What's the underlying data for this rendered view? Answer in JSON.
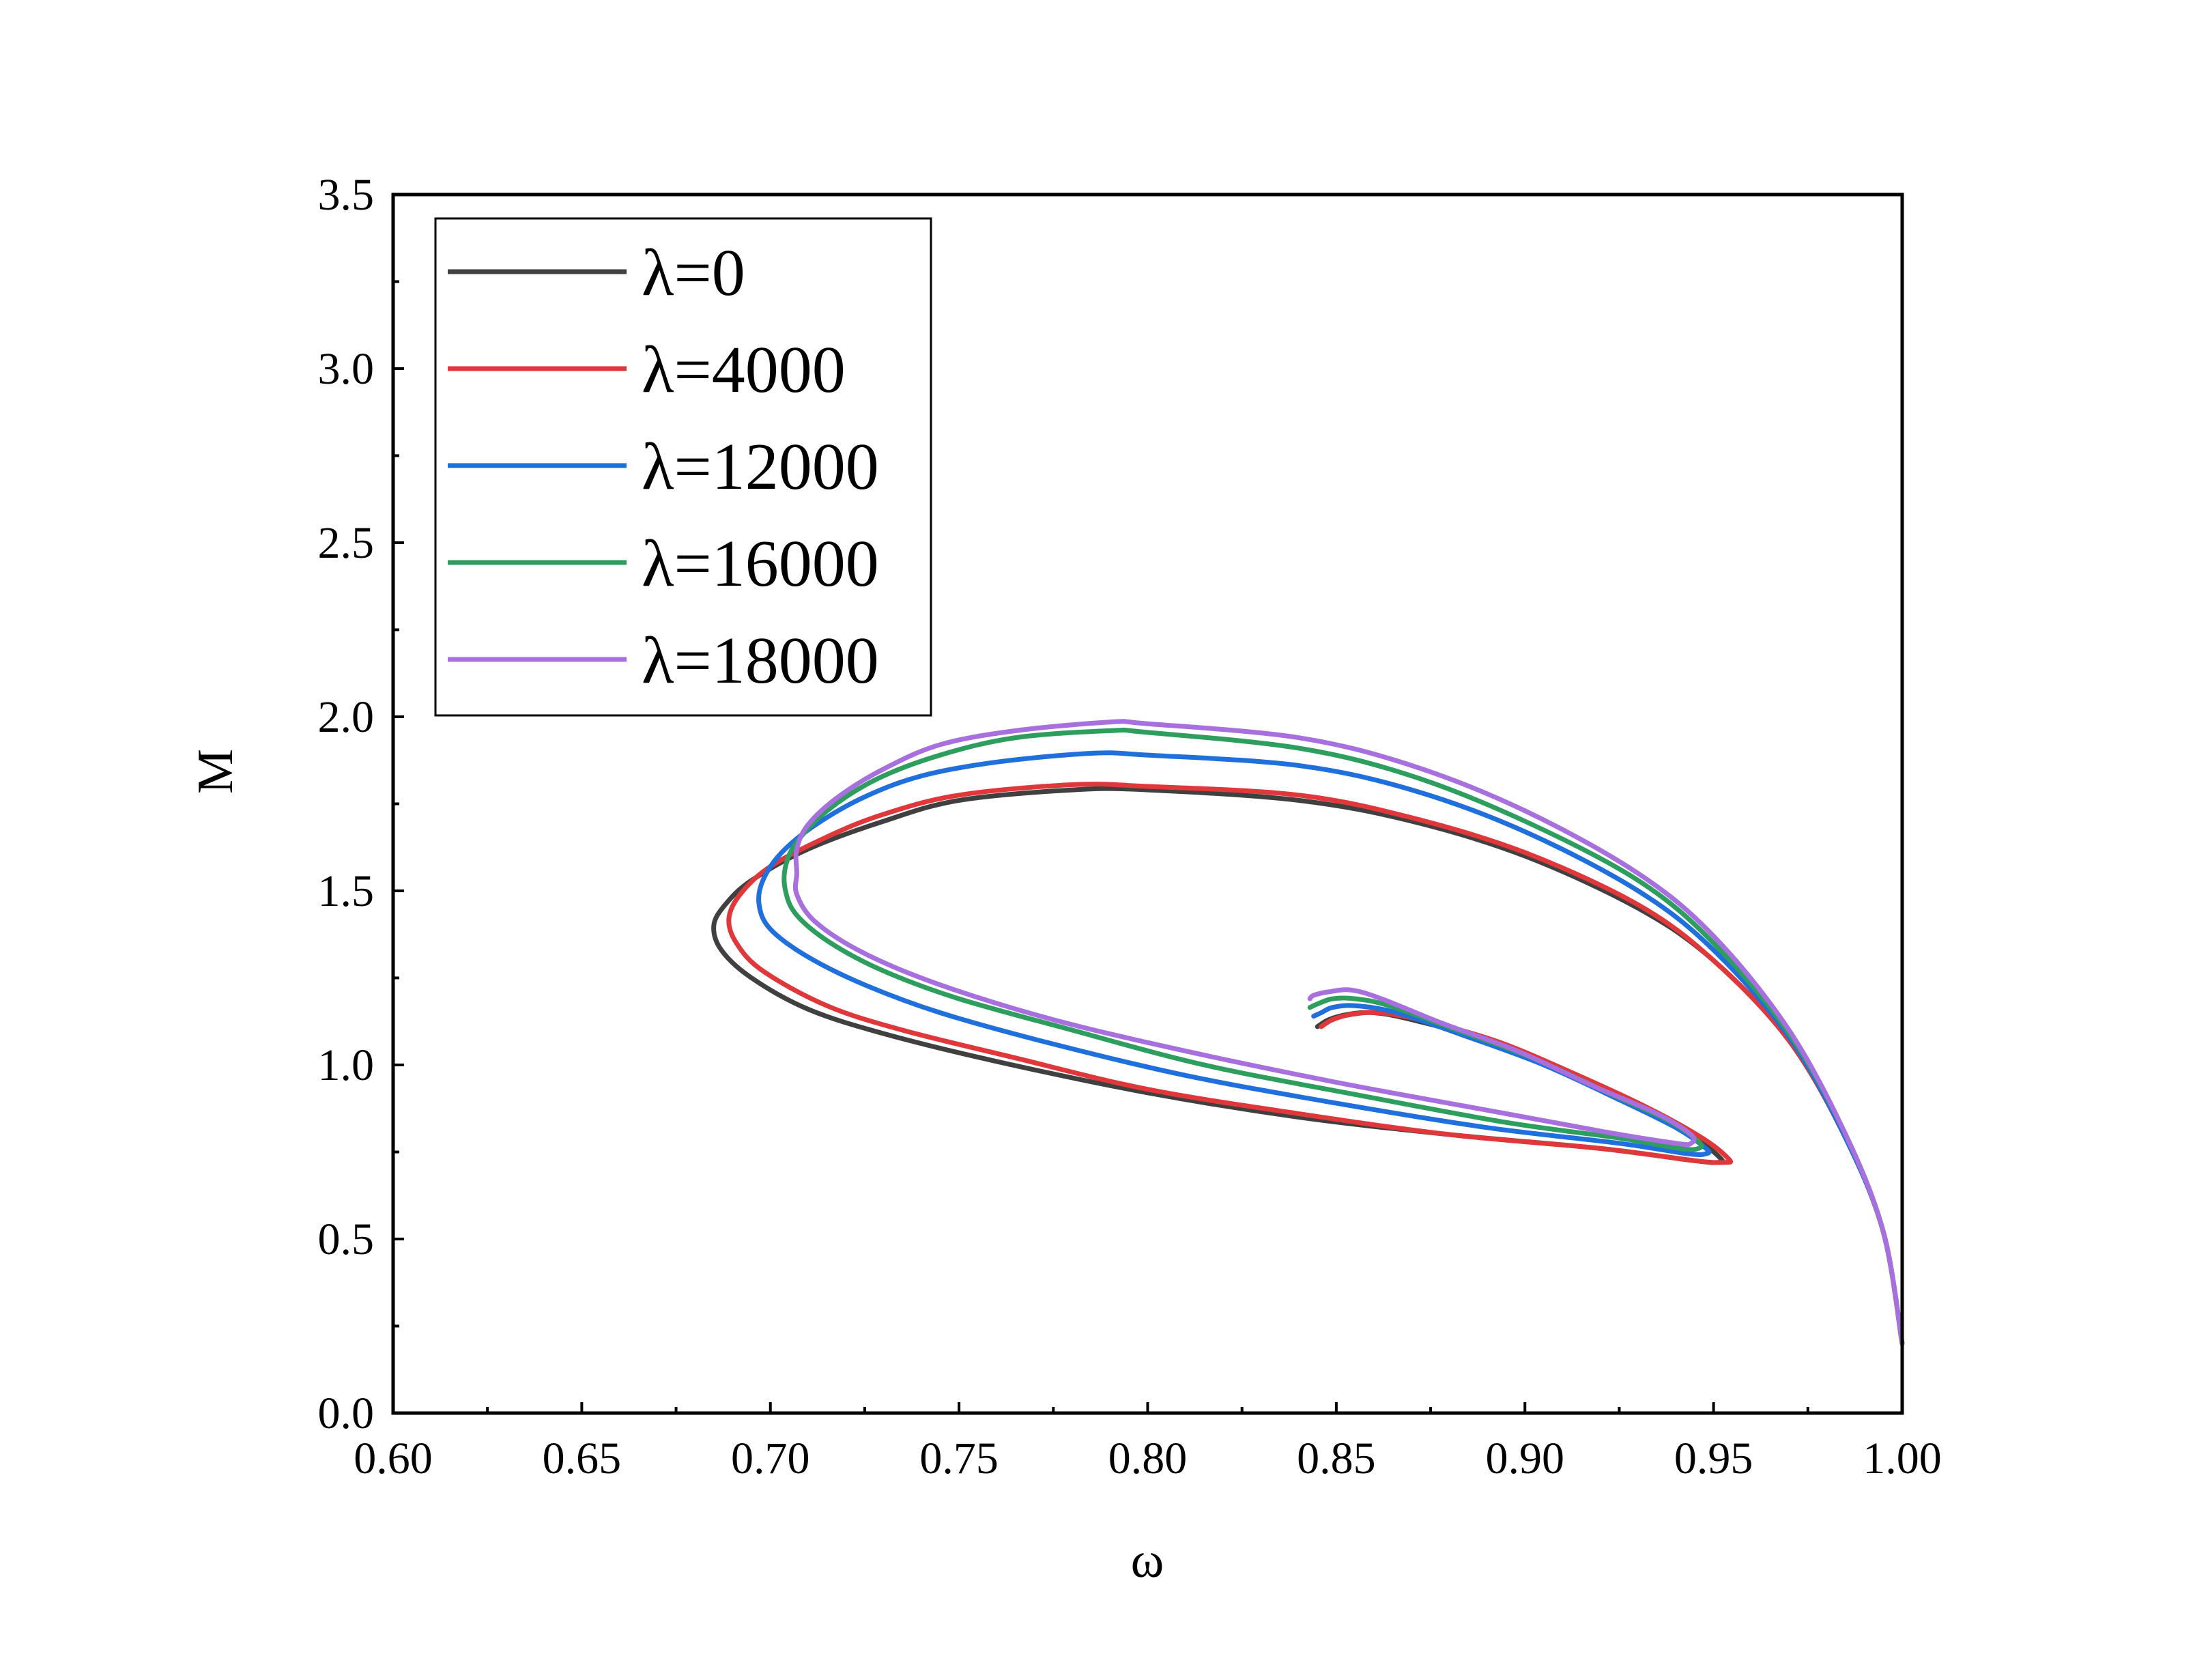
{
  "chart_data": {
    "type": "line",
    "xlabel": "ω",
    "ylabel": "M",
    "xlim": [
      0.6,
      1.0
    ],
    "ylim": [
      0.0,
      3.5
    ],
    "xticks": [
      "0.60",
      "0.65",
      "0.70",
      "0.75",
      "0.80",
      "0.85",
      "0.90",
      "0.95",
      "1.00"
    ],
    "yticks": [
      "0.0",
      "0.5",
      "1.0",
      "1.5",
      "2.0",
      "2.5",
      "3.0",
      "3.5"
    ],
    "grid": false,
    "legend_position": "top-left",
    "series": [
      {
        "name": "λ=0",
        "color": "#404040",
        "points": [
          [
            1.0,
            0.2
          ],
          [
            0.995,
            0.52
          ],
          [
            0.985,
            0.79
          ],
          [
            0.97,
            1.07
          ],
          [
            0.95,
            1.3
          ],
          [
            0.93,
            1.45
          ],
          [
            0.9,
            1.6
          ],
          [
            0.87,
            1.7
          ],
          [
            0.84,
            1.76
          ],
          [
            0.8,
            1.79
          ],
          [
            0.78,
            1.79
          ],
          [
            0.75,
            1.76
          ],
          [
            0.73,
            1.7
          ],
          [
            0.71,
            1.62
          ],
          [
            0.695,
            1.53
          ],
          [
            0.688,
            1.46
          ],
          [
            0.685,
            1.4
          ],
          [
            0.687,
            1.33
          ],
          [
            0.695,
            1.25
          ],
          [
            0.71,
            1.16
          ],
          [
            0.73,
            1.09
          ],
          [
            0.76,
            1.01
          ],
          [
            0.8,
            0.92
          ],
          [
            0.84,
            0.85
          ],
          [
            0.88,
            0.8
          ],
          [
            0.92,
            0.76
          ],
          [
            0.945,
            0.725
          ],
          [
            0.951,
            0.72
          ],
          [
            0.952,
            0.73
          ],
          [
            0.945,
            0.79
          ],
          [
            0.93,
            0.88
          ],
          [
            0.91,
            0.98
          ],
          [
            0.89,
            1.07
          ],
          [
            0.87,
            1.13
          ],
          [
            0.86,
            1.15
          ],
          [
            0.853,
            1.145
          ],
          [
            0.848,
            1.13
          ],
          [
            0.845,
            1.11
          ]
        ]
      },
      {
        "name": "λ=4000",
        "color": "#e0383a",
        "points": [
          [
            1.0,
            0.2
          ],
          [
            0.995,
            0.52
          ],
          [
            0.985,
            0.79
          ],
          [
            0.97,
            1.07
          ],
          [
            0.95,
            1.3
          ],
          [
            0.93,
            1.46
          ],
          [
            0.9,
            1.61
          ],
          [
            0.87,
            1.71
          ],
          [
            0.84,
            1.775
          ],
          [
            0.8,
            1.8
          ],
          [
            0.78,
            1.805
          ],
          [
            0.75,
            1.775
          ],
          [
            0.73,
            1.72
          ],
          [
            0.715,
            1.655
          ],
          [
            0.7,
            1.57
          ],
          [
            0.692,
            1.49
          ],
          [
            0.689,
            1.42
          ],
          [
            0.691,
            1.35
          ],
          [
            0.698,
            1.27
          ],
          [
            0.715,
            1.17
          ],
          [
            0.735,
            1.1
          ],
          [
            0.765,
            1.02
          ],
          [
            0.8,
            0.93
          ],
          [
            0.84,
            0.86
          ],
          [
            0.88,
            0.8
          ],
          [
            0.92,
            0.76
          ],
          [
            0.945,
            0.725
          ],
          [
            0.953,
            0.72
          ],
          [
            0.954,
            0.73
          ],
          [
            0.947,
            0.79
          ],
          [
            0.932,
            0.88
          ],
          [
            0.912,
            0.98
          ],
          [
            0.892,
            1.07
          ],
          [
            0.872,
            1.13
          ],
          [
            0.861,
            1.15
          ],
          [
            0.854,
            1.145
          ],
          [
            0.849,
            1.13
          ],
          [
            0.846,
            1.11
          ]
        ]
      },
      {
        "name": "λ=12000",
        "color": "#1f6fdc",
        "points": [
          [
            1.0,
            0.2
          ],
          [
            0.995,
            0.52
          ],
          [
            0.985,
            0.79
          ],
          [
            0.97,
            1.08
          ],
          [
            0.95,
            1.33
          ],
          [
            0.93,
            1.5
          ],
          [
            0.9,
            1.67
          ],
          [
            0.87,
            1.79
          ],
          [
            0.84,
            1.86
          ],
          [
            0.8,
            1.89
          ],
          [
            0.785,
            1.895
          ],
          [
            0.76,
            1.87
          ],
          [
            0.74,
            1.83
          ],
          [
            0.725,
            1.77
          ],
          [
            0.712,
            1.69
          ],
          [
            0.703,
            1.61
          ],
          [
            0.698,
            1.53
          ],
          [
            0.697,
            1.46
          ],
          [
            0.7,
            1.39
          ],
          [
            0.71,
            1.31
          ],
          [
            0.725,
            1.23
          ],
          [
            0.745,
            1.15
          ],
          [
            0.775,
            1.06
          ],
          [
            0.81,
            0.97
          ],
          [
            0.85,
            0.89
          ],
          [
            0.89,
            0.82
          ],
          [
            0.925,
            0.775
          ],
          [
            0.943,
            0.745
          ],
          [
            0.948,
            0.745
          ],
          [
            0.948,
            0.76
          ],
          [
            0.94,
            0.82
          ],
          [
            0.925,
            0.9
          ],
          [
            0.905,
            1.0
          ],
          [
            0.885,
            1.08
          ],
          [
            0.866,
            1.15
          ],
          [
            0.855,
            1.17
          ],
          [
            0.849,
            1.165
          ],
          [
            0.846,
            1.15
          ],
          [
            0.844,
            1.14
          ]
        ]
      },
      {
        "name": "λ=16000",
        "color": "#2e9e5e",
        "points": [
          [
            1.0,
            0.2
          ],
          [
            0.995,
            0.52
          ],
          [
            0.985,
            0.8
          ],
          [
            0.97,
            1.09
          ],
          [
            0.95,
            1.35
          ],
          [
            0.93,
            1.53
          ],
          [
            0.9,
            1.7
          ],
          [
            0.87,
            1.83
          ],
          [
            0.84,
            1.91
          ],
          [
            0.8,
            1.955
          ],
          [
            0.79,
            1.96
          ],
          [
            0.765,
            1.94
          ],
          [
            0.745,
            1.89
          ],
          [
            0.728,
            1.82
          ],
          [
            0.715,
            1.73
          ],
          [
            0.707,
            1.64
          ],
          [
            0.704,
            1.57
          ],
          [
            0.704,
            1.5
          ],
          [
            0.707,
            1.43
          ],
          [
            0.716,
            1.35
          ],
          [
            0.73,
            1.27
          ],
          [
            0.75,
            1.19
          ],
          [
            0.78,
            1.1
          ],
          [
            0.815,
            1.0
          ],
          [
            0.855,
            0.915
          ],
          [
            0.895,
            0.835
          ],
          [
            0.925,
            0.79
          ],
          [
            0.941,
            0.76
          ],
          [
            0.946,
            0.76
          ],
          [
            0.946,
            0.78
          ],
          [
            0.938,
            0.84
          ],
          [
            0.922,
            0.92
          ],
          [
            0.902,
            1.02
          ],
          [
            0.882,
            1.1
          ],
          [
            0.864,
            1.17
          ],
          [
            0.855,
            1.19
          ],
          [
            0.849,
            1.19
          ],
          [
            0.845,
            1.175
          ],
          [
            0.843,
            1.165
          ]
        ]
      },
      {
        "name": "λ=18000",
        "color": "#a86fde",
        "points": [
          [
            1.0,
            0.2
          ],
          [
            0.995,
            0.52
          ],
          [
            0.985,
            0.8
          ],
          [
            0.97,
            1.1
          ],
          [
            0.95,
            1.37
          ],
          [
            0.93,
            1.55
          ],
          [
            0.9,
            1.73
          ],
          [
            0.87,
            1.86
          ],
          [
            0.84,
            1.94
          ],
          [
            0.8,
            1.98
          ],
          [
            0.79,
            1.985
          ],
          [
            0.765,
            1.96
          ],
          [
            0.745,
            1.92
          ],
          [
            0.73,
            1.85
          ],
          [
            0.718,
            1.77
          ],
          [
            0.71,
            1.69
          ],
          [
            0.707,
            1.62
          ],
          [
            0.707,
            1.55
          ],
          [
            0.707,
            1.49
          ],
          [
            0.712,
            1.41
          ],
          [
            0.725,
            1.32
          ],
          [
            0.745,
            1.23
          ],
          [
            0.775,
            1.13
          ],
          [
            0.81,
            1.04
          ],
          [
            0.85,
            0.95
          ],
          [
            0.89,
            0.87
          ],
          [
            0.92,
            0.81
          ],
          [
            0.94,
            0.775
          ],
          [
            0.944,
            0.775
          ],
          [
            0.944,
            0.8
          ],
          [
            0.935,
            0.86
          ],
          [
            0.918,
            0.94
          ],
          [
            0.898,
            1.04
          ],
          [
            0.878,
            1.12
          ],
          [
            0.862,
            1.19
          ],
          [
            0.854,
            1.215
          ],
          [
            0.848,
            1.21
          ],
          [
            0.844,
            1.2
          ],
          [
            0.843,
            1.19
          ]
        ]
      }
    ]
  }
}
